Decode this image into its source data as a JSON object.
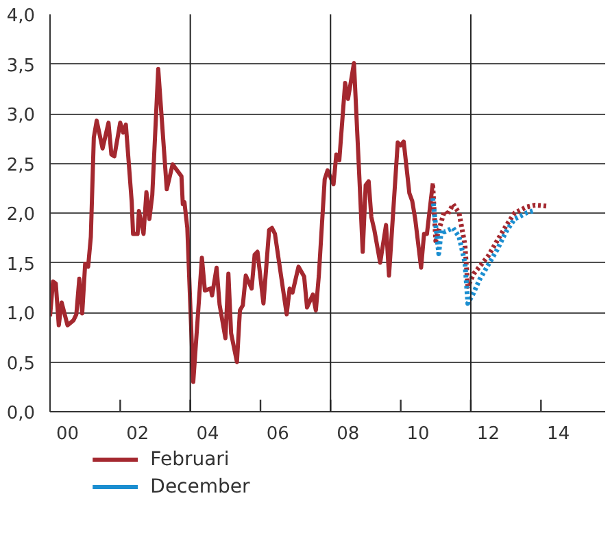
{
  "chart_data": {
    "type": "line",
    "xlim": [
      "2000-01",
      "2015-11"
    ],
    "ylim": [
      0,
      4
    ],
    "xticks": [
      {
        "value": "2000-07",
        "label": "00"
      },
      {
        "value": "2002-07",
        "label": "02"
      },
      {
        "value": "2004-07",
        "label": "04"
      },
      {
        "value": "2006-07",
        "label": "06"
      },
      {
        "value": "2008-07",
        "label": "08"
      },
      {
        "value": "2010-07",
        "label": "10"
      },
      {
        "value": "2012-07",
        "label": "12"
      },
      {
        "value": "2014-07",
        "label": "14"
      },
      {
        "value": "2002-01",
        "label": null
      },
      {
        "value": "2004-01",
        "label": null
      },
      {
        "value": "2006-01",
        "label": null
      },
      {
        "value": "2008-01",
        "label": null
      },
      {
        "value": "2010-01",
        "label": null
      },
      {
        "value": "2012-01",
        "label": null
      },
      {
        "value": "2014-01",
        "label": null
      }
    ],
    "yticks": [
      {
        "value": 0,
        "label": "0,0"
      },
      {
        "value": 0.5,
        "label": "0,5"
      },
      {
        "value": 1,
        "label": "1,0"
      },
      {
        "value": 1.5,
        "label": "1,5"
      },
      {
        "value": 2,
        "label": "2,0"
      },
      {
        "value": 2.5,
        "label": "2,5"
      },
      {
        "value": 3,
        "label": "3,0"
      },
      {
        "value": 3.5,
        "label": "3,5"
      },
      {
        "value": 4,
        "label": "4,0"
      }
    ],
    "grid": "y",
    "legend": "bottom",
    "ref_lines": [
      {
        "axis": "x",
        "value": "2004-01"
      },
      {
        "axis": "x",
        "value": "2008-01"
      },
      {
        "axis": "x",
        "value": "2012-01"
      }
    ],
    "series": [
      {
        "name": "Februari",
        "color": "#a4282f",
        "line_style": "solid",
        "x": [
          "2000-01",
          "2000-02",
          "2000-03",
          "2000-04",
          "2000-05",
          "2000-07",
          "2000-09",
          "2000-10",
          "2000-11",
          "2000-12",
          "2001-01",
          "2001-02",
          "2001-03",
          "2001-04",
          "2001-05",
          "2001-07",
          "2001-09",
          "2001-10",
          "2001-11",
          "2002-01",
          "2002-02",
          "2002-03",
          "2002-05",
          "2002-05-15",
          "2002-07",
          "2002-07-15",
          "2002-09",
          "2002-10",
          "2002-11",
          "2002-12",
          "2003-02",
          "2003-05",
          "2003-07",
          "2003-10",
          "2003-10-15",
          "2003-11",
          "2003-12",
          "2004-02",
          "2004-05",
          "2004-06",
          "2004-08",
          "2004-08-15",
          "2004-10",
          "2004-11",
          "2005-01",
          "2005-02",
          "2005-03",
          "2005-05",
          "2005-06",
          "2005-07",
          "2005-08",
          "2005-10",
          "2005-11",
          "2005-12",
          "2006-02",
          "2006-04",
          "2006-05",
          "2006-06",
          "2006-10",
          "2006-11",
          "2006-12",
          "2007-02",
          "2007-04",
          "2007-05",
          "2007-07",
          "2007-08",
          "2007-09",
          "2007-11",
          "2007-12",
          "2008-02",
          "2008-03",
          "2008-04",
          "2008-06",
          "2008-07",
          "2008-09",
          "2008-11",
          "2008-12",
          "2009-01",
          "2009-02",
          "2009-03",
          "2009-04",
          "2009-06",
          "2009-08",
          "2009-09",
          "2009-12",
          "2010-01",
          "2010-02",
          "2010-04",
          "2010-05",
          "2010-06",
          "2010-08",
          "2010-09",
          "2010-10",
          "2010-12"
        ],
        "values": [
          0.96,
          1.31,
          1.29,
          0.87,
          1.1,
          0.87,
          0.92,
          0.98,
          1.34,
          0.99,
          1.49,
          1.46,
          1.76,
          2.76,
          2.93,
          2.65,
          2.91,
          2.59,
          2.57,
          2.91,
          2.81,
          2.89,
          2.11,
          1.79,
          1.79,
          2.02,
          1.79,
          2.21,
          1.94,
          2.18,
          3.45,
          2.24,
          2.49,
          2.37,
          2.09,
          2.11,
          1.85,
          0.3,
          1.55,
          1.22,
          1.24,
          1.17,
          1.45,
          1.08,
          0.74,
          1.39,
          0.79,
          0.5,
          1.02,
          1.07,
          1.37,
          1.24,
          1.58,
          1.61,
          1.09,
          1.83,
          1.85,
          1.79,
          0.98,
          1.24,
          1.2,
          1.46,
          1.36,
          1.05,
          1.18,
          1.02,
          1.37,
          2.34,
          2.43,
          2.29,
          2.59,
          2.53,
          3.31,
          3.15,
          3.51,
          2.26,
          1.61,
          2.28,
          2.32,
          1.96,
          1.83,
          1.5,
          1.88,
          1.37,
          2.71,
          2.68,
          2.72,
          2.2,
          2.12,
          1.94,
          1.45,
          1.79,
          1.79,
          2.3
        ]
      },
      {
        "color": "#a4282f",
        "line_style": "dotted",
        "x": [
          "2010-12",
          "2011-01",
          "2011-04",
          "2011-05",
          "2011-07",
          "2011-09",
          "2011-11",
          "2011-12",
          "2012-02",
          "2012-04",
          "2012-07",
          "2012-10",
          "2013-01",
          "2013-04",
          "2013-08",
          "2013-11",
          "2014-03"
        ],
        "values": [
          2.28,
          1.72,
          2.02,
          1.98,
          2.09,
          2.0,
          1.68,
          1.26,
          1.39,
          1.46,
          1.57,
          1.72,
          1.87,
          2.0,
          2.06,
          2.08,
          2.07
        ]
      },
      {
        "name": "December",
        "color": "#1b8ed0",
        "line_style": "dotted",
        "x": [
          "2010-12",
          "2011-02",
          "2011-03",
          "2011-04",
          "2011-07",
          "2011-09",
          "2011-11",
          "2011-12",
          "2012-02",
          "2012-04",
          "2012-07",
          "2012-10",
          "2013-01",
          "2013-04",
          "2013-08",
          "2013-11"
        ],
        "values": [
          2.15,
          1.59,
          1.83,
          1.81,
          1.85,
          1.76,
          1.5,
          1.09,
          1.2,
          1.33,
          1.48,
          1.63,
          1.81,
          1.94,
          2.0,
          2.03
        ]
      }
    ]
  }
}
